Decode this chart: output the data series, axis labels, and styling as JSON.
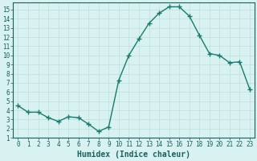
{
  "x": [
    0,
    1,
    2,
    3,
    4,
    5,
    6,
    7,
    8,
    9,
    10,
    11,
    12,
    13,
    14,
    15,
    16,
    17,
    18,
    19,
    20,
    21,
    22,
    23
  ],
  "y": [
    4.5,
    3.8,
    3.8,
    3.2,
    2.8,
    3.3,
    3.2,
    2.5,
    1.7,
    2.2,
    7.3,
    10.0,
    11.8,
    13.5,
    14.6,
    15.3,
    15.3,
    14.3,
    12.2,
    10.2,
    10.0,
    9.2,
    9.3,
    6.3
  ],
  "line_color": "#1a7a6e",
  "marker": "+",
  "marker_size": 4,
  "bg_color": "#d7f2f0",
  "grid_color": "#c0deda",
  "xlabel": "Humidex (Indice chaleur)",
  "ylim": [
    1,
    15.8
  ],
  "xlim": [
    -0.5,
    23.5
  ],
  "yticks": [
    1,
    2,
    3,
    4,
    5,
    6,
    7,
    8,
    9,
    10,
    11,
    12,
    13,
    14,
    15
  ],
  "xticks": [
    0,
    1,
    2,
    3,
    4,
    5,
    6,
    7,
    8,
    9,
    10,
    11,
    12,
    13,
    14,
    15,
    16,
    17,
    18,
    19,
    20,
    21,
    22,
    23
  ],
  "tick_color": "#1a6060",
  "axis_color": "#1a6060",
  "label_fontsize": 7,
  "tick_fontsize": 5.5,
  "linewidth": 1.0
}
